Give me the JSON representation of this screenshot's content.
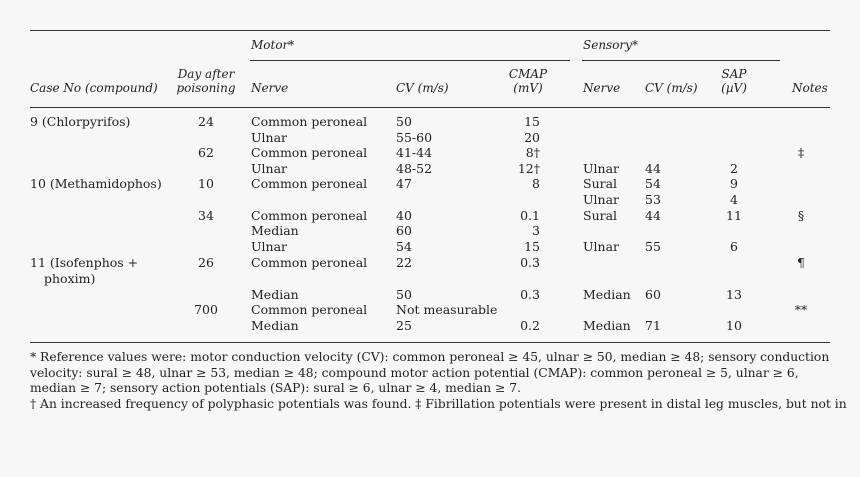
{
  "headers": {
    "motor": "Motor*",
    "sensory": "Sensory*",
    "case_no": "Case No (compound)",
    "day_after_line1": "Day after",
    "day_after_line2": "poisoning",
    "nerve_motor": "Nerve",
    "cv_motor": "CV (m/s)",
    "cmap_line1": "CMAP",
    "cmap_line2": "(mV)",
    "nerve_sensory": "Nerve",
    "cv_sensory": "CV (m/s)",
    "sap_line1": "SAP",
    "sap_line2": "(µV)",
    "notes": "Notes"
  },
  "rows": [
    {
      "case": "9 (Chlorpyrifos)",
      "day": "24",
      "mnerve": "Common peroneal",
      "mcv": "50",
      "cmap": "15",
      "snerve": "",
      "scv": "",
      "sap": "",
      "note": ""
    },
    {
      "case": "",
      "day": "",
      "mnerve": "Ulnar",
      "mcv": "55-60",
      "cmap": "20",
      "snerve": "",
      "scv": "",
      "sap": "",
      "note": ""
    },
    {
      "case": "",
      "day": "62",
      "mnerve": "Common peroneal",
      "mcv": "41-44",
      "cmap": "8†",
      "snerve": "",
      "scv": "",
      "sap": "",
      "note": "‡"
    },
    {
      "case": "",
      "day": "",
      "mnerve": "Ulnar",
      "mcv": "48-52",
      "cmap": "12†",
      "snerve": "Ulnar",
      "scv": "44",
      "sap": "2",
      "note": ""
    },
    {
      "case": "10 (Methamidophos)",
      "day": "10",
      "mnerve": "Common peroneal",
      "mcv": "47",
      "cmap": "8",
      "snerve": "Sural",
      "scv": "54",
      "sap": "9",
      "note": ""
    },
    {
      "case": "",
      "day": "",
      "mnerve": "",
      "mcv": "",
      "cmap": "",
      "snerve": "Ulnar",
      "scv": "53",
      "sap": "4",
      "note": ""
    },
    {
      "case": "",
      "day": "34",
      "mnerve": "Common peroneal",
      "mcv": "40",
      "cmap": "0.1",
      "snerve": "Sural",
      "scv": "44",
      "sap": "11",
      "note": "§"
    },
    {
      "case": "",
      "day": "",
      "mnerve": "Median",
      "mcv": "60",
      "cmap": "3",
      "snerve": "",
      "scv": "",
      "sap": "",
      "note": ""
    },
    {
      "case": "",
      "day": "",
      "mnerve": "Ulnar",
      "mcv": "54",
      "cmap": "15",
      "snerve": "Ulnar",
      "scv": "55",
      "sap": "6",
      "note": ""
    },
    {
      "case": "11 (Isofenphos +",
      "day": "26",
      "mnerve": "Common peroneal",
      "mcv": "22",
      "cmap": "0.3",
      "snerve": "",
      "scv": "",
      "sap": "",
      "note": "¶"
    },
    {
      "case": "phoxim)",
      "day": "",
      "mnerve": "",
      "mcv": "",
      "cmap": "",
      "snerve": "",
      "scv": "",
      "sap": "",
      "note": ""
    },
    {
      "case": "",
      "day": "",
      "mnerve": "Median",
      "mcv": "50",
      "cmap": "0.3",
      "snerve": "Median",
      "scv": "60",
      "sap": "13",
      "note": ""
    },
    {
      "case": "",
      "day": "700",
      "mnerve": "Common peroneal",
      "mcv": "Not measurable",
      "cmap": "",
      "snerve": "",
      "scv": "",
      "sap": "",
      "note": "**"
    },
    {
      "case": "",
      "day": "",
      "mnerve": "Median",
      "mcv": "25",
      "cmap": "0.2",
      "snerve": "Median",
      "scv": "71",
      "sap": "10",
      "note": ""
    }
  ],
  "footnotes": [
    "* Reference values were: motor conduction velocity (CV): common peroneal ≥ 45, ulnar ≥ 50, median ≥ 48; sensory conduction",
    "velocity: sural ≥ 48, ulnar ≥ 53, median ≥ 48; compound motor action potential (CMAP): common peroneal ≥ 5, ulnar ≥ 6,",
    "median ≥ 7; sensory action potentials (SAP): sural ≥ 6, ulnar ≥ 4, median ≥ 7.",
    "† An increased frequency of polyphasic potentials was found. ‡ Fibrillation potentials were present in distal leg muscles, but not in"
  ]
}
